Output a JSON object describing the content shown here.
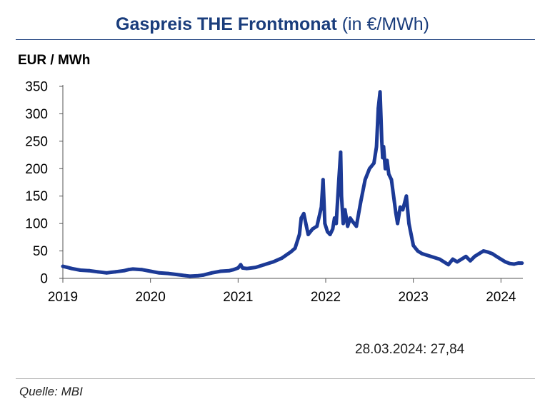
{
  "chart_data": {
    "type": "line",
    "title_bold": "Gaspreis THE Frontmonat",
    "title_normal": "(in €/MWh)",
    "ylabel": "EUR / MWh",
    "xlabel": "",
    "ylim": [
      0,
      350
    ],
    "yticks": [
      0,
      50,
      100,
      150,
      200,
      250,
      300,
      350
    ],
    "xlim": [
      2019,
      2024.25
    ],
    "xticks": [
      "2019",
      "2020",
      "2021",
      "2022",
      "2023",
      "2024"
    ],
    "grid": false,
    "series": [
      {
        "name": "Gaspreis THE Frontmonat",
        "color": "#1c3a96",
        "x": [
          2019.0,
          2019.05,
          2019.1,
          2019.2,
          2019.3,
          2019.4,
          2019.5,
          2019.55,
          2019.6,
          2019.7,
          2019.75,
          2019.8,
          2019.9,
          2020.0,
          2020.1,
          2020.2,
          2020.3,
          2020.4,
          2020.45,
          2020.55,
          2020.6,
          2020.7,
          2020.8,
          2020.9,
          2020.95,
          2021.0,
          2021.03,
          2021.05,
          2021.1,
          2021.2,
          2021.3,
          2021.4,
          2021.5,
          2021.6,
          2021.65,
          2021.7,
          2021.72,
          2021.75,
          2021.78,
          2021.8,
          2021.85,
          2021.9,
          2021.95,
          2021.97,
          2021.99,
          2022.02,
          2022.05,
          2022.08,
          2022.1,
          2022.12,
          2022.15,
          2022.17,
          2022.18,
          2022.2,
          2022.22,
          2022.25,
          2022.28,
          2022.3,
          2022.35,
          2022.4,
          2022.45,
          2022.5,
          2022.55,
          2022.58,
          2022.6,
          2022.62,
          2022.64,
          2022.65,
          2022.66,
          2022.68,
          2022.7,
          2022.72,
          2022.75,
          2022.8,
          2022.82,
          2022.85,
          2022.88,
          2022.92,
          2022.95,
          2023.0,
          2023.05,
          2023.1,
          2023.2,
          2023.3,
          2023.4,
          2023.45,
          2023.5,
          2023.55,
          2023.6,
          2023.65,
          2023.7,
          2023.75,
          2023.8,
          2023.85,
          2023.9,
          2023.95,
          2024.0,
          2024.05,
          2024.1,
          2024.15,
          2024.2,
          2024.24
        ],
        "values": [
          22,
          20,
          18,
          15,
          14,
          12,
          10,
          11,
          12,
          14,
          16,
          17,
          16,
          13,
          10,
          9,
          7,
          5,
          4,
          5,
          6,
          10,
          13,
          14,
          16,
          19,
          25,
          19,
          18,
          20,
          25,
          30,
          37,
          48,
          55,
          80,
          110,
          118,
          95,
          80,
          90,
          95,
          130,
          180,
          100,
          85,
          80,
          90,
          110,
          100,
          180,
          230,
          150,
          100,
          125,
          95,
          110,
          105,
          95,
          140,
          180,
          200,
          210,
          240,
          310,
          340,
          250,
          220,
          240,
          200,
          215,
          190,
          180,
          120,
          100,
          130,
          125,
          150,
          100,
          60,
          50,
          45,
          40,
          35,
          25,
          35,
          30,
          35,
          40,
          32,
          40,
          45,
          50,
          48,
          45,
          40,
          35,
          30,
          27,
          26,
          28,
          27.84
        ]
      }
    ],
    "annotation": "28.03.2024: 27,84"
  },
  "footer": {
    "source": "Quelle: MBI"
  }
}
